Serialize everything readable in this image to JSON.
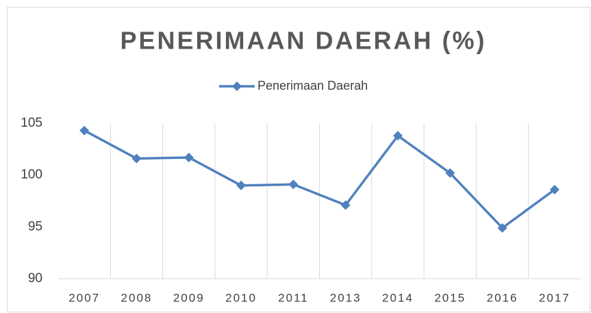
{
  "chart_data": {
    "type": "line",
    "title": "PENERIMAAN DAERAH (%)",
    "categories": [
      "2007",
      "2008",
      "2009",
      "2010",
      "2011",
      "2013",
      "2014",
      "2015",
      "2016",
      "2017"
    ],
    "series": [
      {
        "name": "Penerimaan Daerah",
        "color": "#4f81bd",
        "values": [
          104.3,
          101.6,
          101.7,
          99.0,
          99.1,
          97.1,
          103.8,
          100.2,
          94.9,
          98.6
        ]
      }
    ],
    "ylim": [
      90,
      105
    ],
    "yticks": [
      90,
      95,
      100,
      105
    ],
    "xgrid": true,
    "legend": "top"
  }
}
